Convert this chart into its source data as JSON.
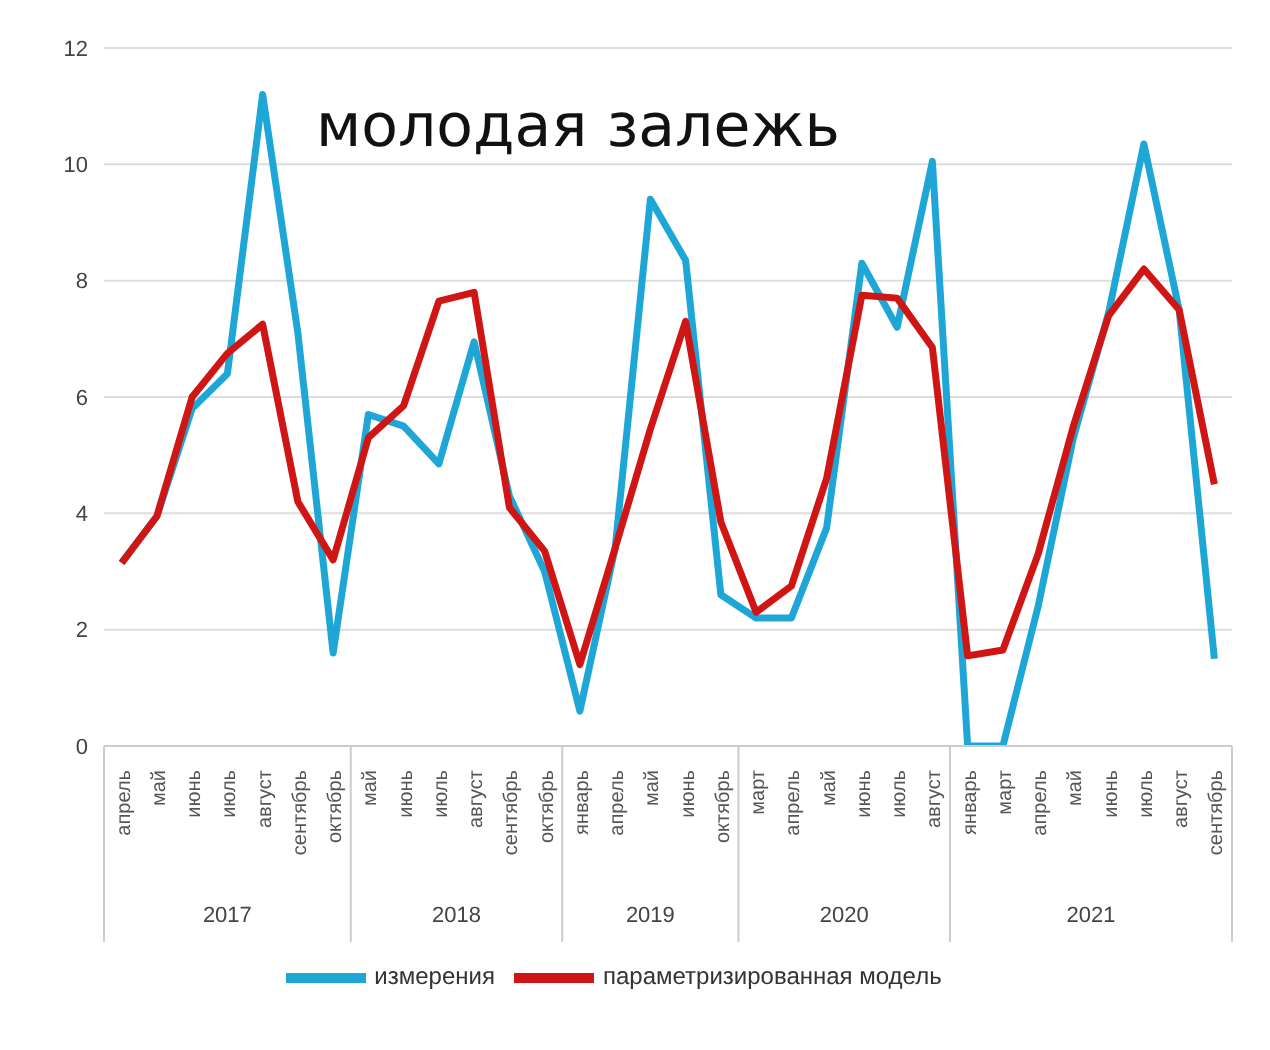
{
  "chart_data": {
    "type": "line",
    "title": "молодая залежь",
    "categories": [
      "апрель",
      "май",
      "июнь",
      "июль",
      "август",
      "сентябрь",
      "октябрь",
      "май",
      "июнь",
      "июль",
      "август",
      "сентябрь",
      "октябрь",
      "январь",
      "апрель",
      "май",
      "июнь",
      "октябрь",
      "март",
      "апрель",
      "май",
      "июнь",
      "июль",
      "август",
      "январь",
      "март",
      "апрель",
      "май",
      "июнь",
      "июль",
      "август",
      "сентябрь"
    ],
    "series": [
      {
        "name": "измерения",
        "color": "#1ea7d6",
        "values": [
          3.15,
          3.95,
          5.8,
          6.4,
          11.2,
          7.1,
          1.6,
          5.7,
          5.5,
          4.85,
          6.95,
          4.3,
          3.0,
          0.6,
          3.4,
          9.4,
          8.35,
          2.6,
          2.2,
          2.2,
          3.75,
          8.3,
          7.2,
          10.05,
          0,
          0,
          2.4,
          5.3,
          7.45,
          10.35,
          7.5,
          1.5
        ]
      },
      {
        "name": "параметризированная модель",
        "color": "#d01515",
        "values": [
          3.15,
          3.95,
          6.0,
          6.75,
          7.25,
          4.2,
          3.2,
          5.3,
          5.85,
          7.65,
          7.8,
          4.1,
          3.35,
          1.4,
          3.4,
          5.45,
          7.3,
          3.85,
          2.3,
          2.75,
          4.6,
          7.75,
          7.7,
          6.85,
          1.55,
          1.65,
          3.3,
          5.5,
          7.4,
          8.2,
          7.5,
          4.5
        ]
      }
    ],
    "ylim": [
      0,
      12
    ],
    "yticks": [
      0,
      2,
      4,
      6,
      8,
      10,
      12
    ],
    "grid": "y",
    "legend": "bottom",
    "marker": "none",
    "line_style": "solid",
    "annotations": [
      "2017",
      "2018",
      "2019",
      "2020",
      "2021"
    ]
  }
}
